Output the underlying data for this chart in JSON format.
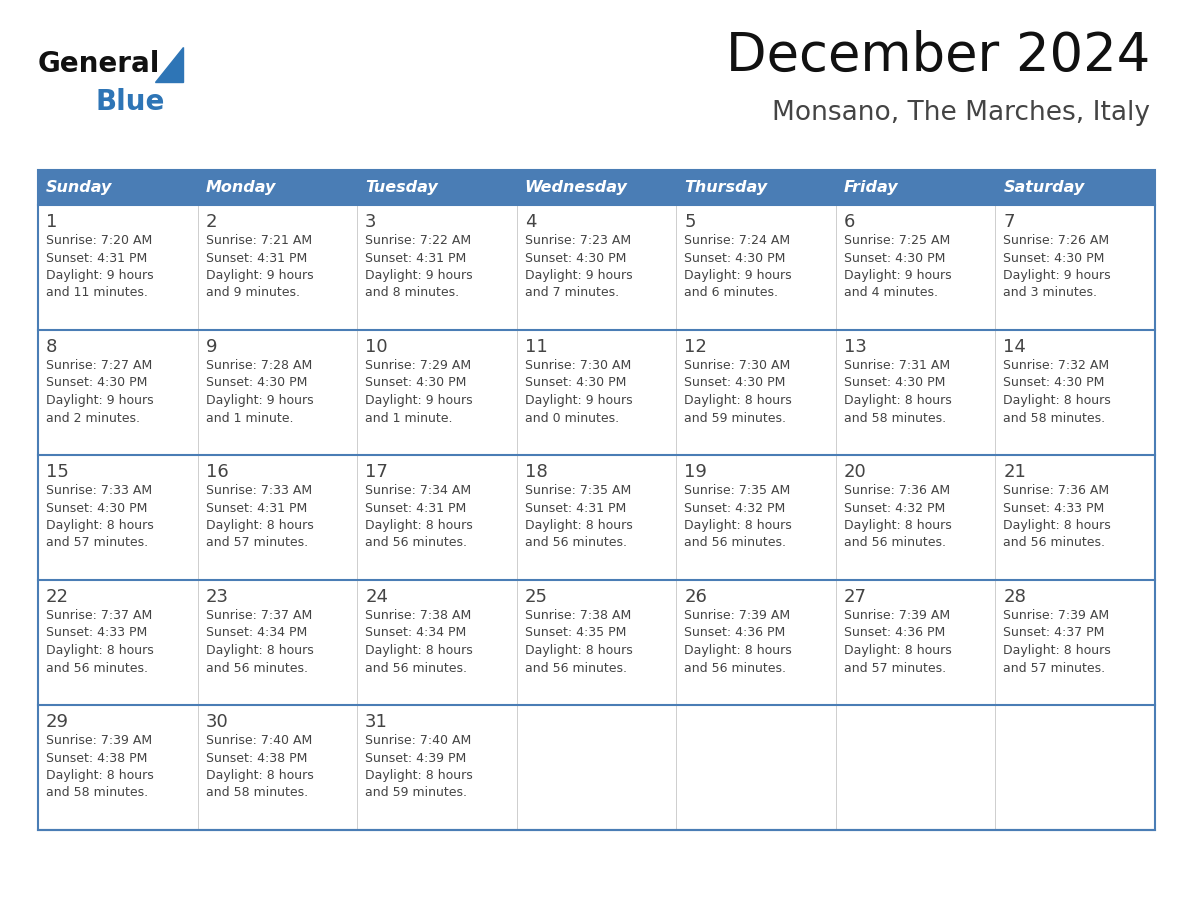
{
  "title": "December 2024",
  "subtitle": "Monsano, The Marches, Italy",
  "header_bg": "#4A7DB5",
  "header_text_color": "#FFFFFF",
  "day_names": [
    "Sunday",
    "Monday",
    "Tuesday",
    "Wednesday",
    "Thursday",
    "Friday",
    "Saturday"
  ],
  "row_bg": "#FFFFFF",
  "cell_text_color": "#444444",
  "grid_line_color": "#4A7DB5",
  "grid_line_light": "#AAAACC",
  "title_color": "#111111",
  "subtitle_color": "#444444",
  "logo_general_color": "#111111",
  "logo_blue_color": "#2E75B6",
  "figsize": [
    11.88,
    9.18
  ],
  "dpi": 100,
  "weeks": [
    [
      {
        "day": 1,
        "sunrise": "7:20 AM",
        "sunset": "4:31 PM",
        "daylight": "9 hours and 11 minutes."
      },
      {
        "day": 2,
        "sunrise": "7:21 AM",
        "sunset": "4:31 PM",
        "daylight": "9 hours and 9 minutes."
      },
      {
        "day": 3,
        "sunrise": "7:22 AM",
        "sunset": "4:31 PM",
        "daylight": "9 hours and 8 minutes."
      },
      {
        "day": 4,
        "sunrise": "7:23 AM",
        "sunset": "4:30 PM",
        "daylight": "9 hours and 7 minutes."
      },
      {
        "day": 5,
        "sunrise": "7:24 AM",
        "sunset": "4:30 PM",
        "daylight": "9 hours and 6 minutes."
      },
      {
        "day": 6,
        "sunrise": "7:25 AM",
        "sunset": "4:30 PM",
        "daylight": "9 hours and 4 minutes."
      },
      {
        "day": 7,
        "sunrise": "7:26 AM",
        "sunset": "4:30 PM",
        "daylight": "9 hours and 3 minutes."
      }
    ],
    [
      {
        "day": 8,
        "sunrise": "7:27 AM",
        "sunset": "4:30 PM",
        "daylight": "9 hours and 2 minutes."
      },
      {
        "day": 9,
        "sunrise": "7:28 AM",
        "sunset": "4:30 PM",
        "daylight": "9 hours and 1 minute."
      },
      {
        "day": 10,
        "sunrise": "7:29 AM",
        "sunset": "4:30 PM",
        "daylight": "9 hours and 1 minute."
      },
      {
        "day": 11,
        "sunrise": "7:30 AM",
        "sunset": "4:30 PM",
        "daylight": "9 hours and 0 minutes."
      },
      {
        "day": 12,
        "sunrise": "7:30 AM",
        "sunset": "4:30 PM",
        "daylight": "8 hours and 59 minutes."
      },
      {
        "day": 13,
        "sunrise": "7:31 AM",
        "sunset": "4:30 PM",
        "daylight": "8 hours and 58 minutes."
      },
      {
        "day": 14,
        "sunrise": "7:32 AM",
        "sunset": "4:30 PM",
        "daylight": "8 hours and 58 minutes."
      }
    ],
    [
      {
        "day": 15,
        "sunrise": "7:33 AM",
        "sunset": "4:30 PM",
        "daylight": "8 hours and 57 minutes."
      },
      {
        "day": 16,
        "sunrise": "7:33 AM",
        "sunset": "4:31 PM",
        "daylight": "8 hours and 57 minutes."
      },
      {
        "day": 17,
        "sunrise": "7:34 AM",
        "sunset": "4:31 PM",
        "daylight": "8 hours and 56 minutes."
      },
      {
        "day": 18,
        "sunrise": "7:35 AM",
        "sunset": "4:31 PM",
        "daylight": "8 hours and 56 minutes."
      },
      {
        "day": 19,
        "sunrise": "7:35 AM",
        "sunset": "4:32 PM",
        "daylight": "8 hours and 56 minutes."
      },
      {
        "day": 20,
        "sunrise": "7:36 AM",
        "sunset": "4:32 PM",
        "daylight": "8 hours and 56 minutes."
      },
      {
        "day": 21,
        "sunrise": "7:36 AM",
        "sunset": "4:33 PM",
        "daylight": "8 hours and 56 minutes."
      }
    ],
    [
      {
        "day": 22,
        "sunrise": "7:37 AM",
        "sunset": "4:33 PM",
        "daylight": "8 hours and 56 minutes."
      },
      {
        "day": 23,
        "sunrise": "7:37 AM",
        "sunset": "4:34 PM",
        "daylight": "8 hours and 56 minutes."
      },
      {
        "day": 24,
        "sunrise": "7:38 AM",
        "sunset": "4:34 PM",
        "daylight": "8 hours and 56 minutes."
      },
      {
        "day": 25,
        "sunrise": "7:38 AM",
        "sunset": "4:35 PM",
        "daylight": "8 hours and 56 minutes."
      },
      {
        "day": 26,
        "sunrise": "7:39 AM",
        "sunset": "4:36 PM",
        "daylight": "8 hours and 56 minutes."
      },
      {
        "day": 27,
        "sunrise": "7:39 AM",
        "sunset": "4:36 PM",
        "daylight": "8 hours and 57 minutes."
      },
      {
        "day": 28,
        "sunrise": "7:39 AM",
        "sunset": "4:37 PM",
        "daylight": "8 hours and 57 minutes."
      }
    ],
    [
      {
        "day": 29,
        "sunrise": "7:39 AM",
        "sunset": "4:38 PM",
        "daylight": "8 hours and 58 minutes."
      },
      {
        "day": 30,
        "sunrise": "7:40 AM",
        "sunset": "4:38 PM",
        "daylight": "8 hours and 58 minutes."
      },
      {
        "day": 31,
        "sunrise": "7:40 AM",
        "sunset": "4:39 PM",
        "daylight": "8 hours and 59 minutes."
      },
      null,
      null,
      null,
      null
    ]
  ]
}
